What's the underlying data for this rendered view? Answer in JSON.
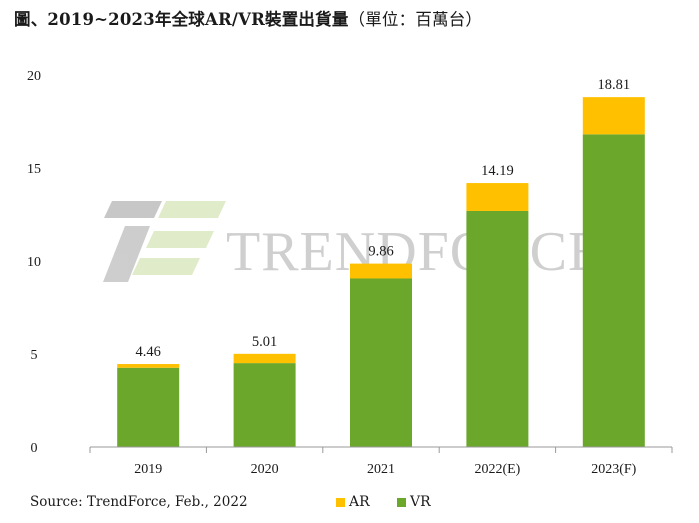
{
  "title": {
    "main": "圖、2019~2023年全球AR/VR裝置出貨量",
    "unit": "（單位：百萬台）"
  },
  "watermark": {
    "text": "TRENDFORCE",
    "icon": "trendforce-logo-icon"
  },
  "source": "Source: TrendForce, Feb., 2022",
  "colors": {
    "AR": "#ffc000",
    "VR": "#6aa72b",
    "axis": "#999999",
    "watermark": "#a8a8a8"
  },
  "chart_data": {
    "type": "bar",
    "stacked": true,
    "categories": [
      "2019",
      "2020",
      "2021",
      "2022(E)",
      "2023(F)"
    ],
    "series": [
      {
        "name": "VR",
        "values": [
          4.26,
          4.51,
          9.06,
          12.69,
          16.81
        ]
      },
      {
        "name": "AR",
        "values": [
          0.2,
          0.5,
          0.8,
          1.5,
          2.0
        ]
      }
    ],
    "totals": [
      "4.46",
      "5.01",
      "9.86",
      "14.19",
      "18.81"
    ],
    "ylim": [
      0,
      20
    ],
    "yticks": [
      0,
      5,
      10,
      15,
      20
    ],
    "grid": false,
    "legend_position": "bottom"
  }
}
